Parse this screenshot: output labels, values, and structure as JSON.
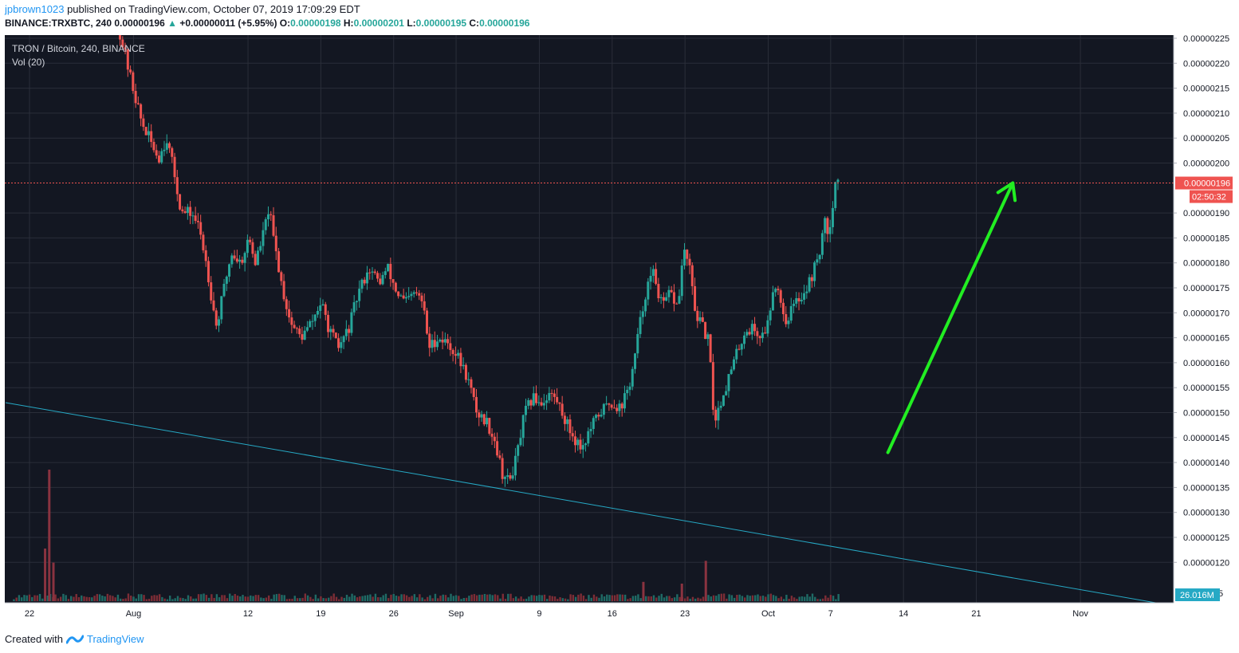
{
  "header": {
    "user": "jpbrown1023",
    "published_text": "published on TradingView.com, October 07, 2019 17:09:29 EDT",
    "symbol": "BINANCE:TRXBTC, 240",
    "last": "0.00000196",
    "change": "+0.00000011 (+5.95%)",
    "o_label": "O:",
    "o_value": "0.00000198",
    "h_label": "H:",
    "h_value": "0.00000201",
    "l_label": "L:",
    "l_value": "0.00000195",
    "c_label": "C:",
    "c_value": "0.00000196"
  },
  "legend": {
    "title": "TRON / Bitcoin, 240, BINANCE",
    "volume": "Vol (20)"
  },
  "footer": {
    "created_with": "Created with",
    "brand": "TradingView"
  },
  "colors": {
    "background": "#131722",
    "grid": "#2a2e39",
    "up": "#26a69a",
    "down": "#ef5350",
    "trendline": "#26a9c5",
    "arrow": "#22ee22",
    "price_line": "#ef5350",
    "axis_text": "#131722"
  },
  "chart_data": {
    "type": "candlestick",
    "symbol": "TRXBTC",
    "interval": "240",
    "exchange": "BINANCE",
    "price_axis": {
      "min": 1.1e-06,
      "max": 2.25e-06,
      "ticks": [
        "0.00000225",
        "0.00000220",
        "0.00000215",
        "0.00000210",
        "0.00000205",
        "0.00000200",
        "0.00000190",
        "0.00000185",
        "0.00000180",
        "0.00000175",
        "0.00000170",
        "0.00000165",
        "0.00000160",
        "0.00000155",
        "0.00000150",
        "0.00000145",
        "0.00000140",
        "0.00000135",
        "0.00000130",
        "0.00000125",
        "0.00000120"
      ],
      "current_price_label": "0.00000196",
      "countdown_label": "02:50:32",
      "volume_label": "26.016M",
      "volume_axis_tick": "5"
    },
    "time_axis": {
      "ticks": [
        {
          "label": "22",
          "day": 0
        },
        {
          "label": "Aug",
          "day": 10
        },
        {
          "label": "12",
          "day": 21
        },
        {
          "label": "19",
          "day": 28
        },
        {
          "label": "26",
          "day": 35
        },
        {
          "label": "Sep",
          "day": 41
        },
        {
          "label": "9",
          "day": 49
        },
        {
          "label": "16",
          "day": 56
        },
        {
          "label": "23",
          "day": 63
        },
        {
          "label": "Oct",
          "day": 71
        },
        {
          "label": "7",
          "day": 77
        },
        {
          "label": "14",
          "day": 84
        },
        {
          "label": "21",
          "day": 91
        },
        {
          "label": "Nov",
          "day": 101
        }
      ]
    },
    "price_path": [
      {
        "day": 8.7,
        "price": 2.26e-06
      },
      {
        "day": 9.6,
        "price": 2.18e-06
      },
      {
        "day": 10.8,
        "price": 2.08e-06
      },
      {
        "day": 12.4,
        "price": 2.01e-06
      },
      {
        "day": 13.2,
        "price": 2.05e-06
      },
      {
        "day": 13.9,
        "price": 1.98e-06
      },
      {
        "day": 14.6,
        "price": 1.9e-06
      },
      {
        "day": 15.6,
        "price": 1.9e-06
      },
      {
        "day": 16.3,
        "price": 1.87e-06
      },
      {
        "day": 17.0,
        "price": 1.8e-06
      },
      {
        "day": 17.5,
        "price": 1.73e-06
      },
      {
        "day": 18.0,
        "price": 1.67e-06
      },
      {
        "day": 18.6,
        "price": 1.74e-06
      },
      {
        "day": 19.4,
        "price": 1.82e-06
      },
      {
        "day": 20.3,
        "price": 1.8e-06
      },
      {
        "day": 21.1,
        "price": 1.85e-06
      },
      {
        "day": 21.7,
        "price": 1.8e-06
      },
      {
        "day": 22.5,
        "price": 1.86e-06
      },
      {
        "day": 23.0,
        "price": 1.91e-06
      },
      {
        "day": 23.6,
        "price": 1.83e-06
      },
      {
        "day": 24.4,
        "price": 1.74e-06
      },
      {
        "day": 25.1,
        "price": 1.68e-06
      },
      {
        "day": 26.1,
        "price": 1.65e-06
      },
      {
        "day": 27.1,
        "price": 1.68e-06
      },
      {
        "day": 28.0,
        "price": 1.72e-06
      },
      {
        "day": 28.9,
        "price": 1.66e-06
      },
      {
        "day": 29.7,
        "price": 1.63e-06
      },
      {
        "day": 30.7,
        "price": 1.67e-06
      },
      {
        "day": 31.6,
        "price": 1.74e-06
      },
      {
        "day": 32.6,
        "price": 1.79e-06
      },
      {
        "day": 33.6,
        "price": 1.76e-06
      },
      {
        "day": 34.4,
        "price": 1.79e-06
      },
      {
        "day": 35.3,
        "price": 1.74e-06
      },
      {
        "day": 36.1,
        "price": 1.72e-06
      },
      {
        "day": 37.1,
        "price": 1.74e-06
      },
      {
        "day": 37.8,
        "price": 1.72e-06
      },
      {
        "day": 38.4,
        "price": 1.63e-06
      },
      {
        "day": 39.2,
        "price": 1.65e-06
      },
      {
        "day": 40.2,
        "price": 1.64e-06
      },
      {
        "day": 41.2,
        "price": 1.61e-06
      },
      {
        "day": 42.1,
        "price": 1.57e-06
      },
      {
        "day": 43.0,
        "price": 1.5e-06
      },
      {
        "day": 44.0,
        "price": 1.48e-06
      },
      {
        "day": 44.8,
        "price": 1.44e-06
      },
      {
        "day": 45.4,
        "price": 1.38e-06
      },
      {
        "day": 46.1,
        "price": 1.36e-06
      },
      {
        "day": 46.8,
        "price": 1.41e-06
      },
      {
        "day": 47.6,
        "price": 1.5e-06
      },
      {
        "day": 48.4,
        "price": 1.53e-06
      },
      {
        "day": 49.3,
        "price": 1.52e-06
      },
      {
        "day": 50.0,
        "price": 1.54e-06
      },
      {
        "day": 50.8,
        "price": 1.52e-06
      },
      {
        "day": 51.6,
        "price": 1.48e-06
      },
      {
        "day": 52.3,
        "price": 1.45e-06
      },
      {
        "day": 53.1,
        "price": 1.43e-06
      },
      {
        "day": 54.0,
        "price": 1.47e-06
      },
      {
        "day": 54.8,
        "price": 1.5e-06
      },
      {
        "day": 55.8,
        "price": 1.52e-06
      },
      {
        "day": 56.8,
        "price": 1.51e-06
      },
      {
        "day": 57.6,
        "price": 1.55e-06
      },
      {
        "day": 58.1,
        "price": 1.6e-06
      },
      {
        "day": 58.6,
        "price": 1.67e-06
      },
      {
        "day": 59.3,
        "price": 1.75e-06
      },
      {
        "day": 60.0,
        "price": 1.78e-06
      },
      {
        "day": 60.8,
        "price": 1.71e-06
      },
      {
        "day": 61.6,
        "price": 1.74e-06
      },
      {
        "day": 62.3,
        "price": 1.71e-06
      },
      {
        "day": 62.9,
        "price": 1.83e-06
      },
      {
        "day": 63.5,
        "price": 1.78e-06
      },
      {
        "day": 64.0,
        "price": 1.7e-06
      },
      {
        "day": 64.7,
        "price": 1.67e-06
      },
      {
        "day": 65.3,
        "price": 1.64e-06
      },
      {
        "day": 65.8,
        "price": 1.48e-06
      },
      {
        "day": 66.4,
        "price": 1.52e-06
      },
      {
        "day": 67.2,
        "price": 1.57e-06
      },
      {
        "day": 68.0,
        "price": 1.62e-06
      },
      {
        "day": 68.7,
        "price": 1.66e-06
      },
      {
        "day": 69.5,
        "price": 1.67e-06
      },
      {
        "day": 70.3,
        "price": 1.65e-06
      },
      {
        "day": 71.0,
        "price": 1.68e-06
      },
      {
        "day": 71.5,
        "price": 1.76e-06
      },
      {
        "day": 72.1,
        "price": 1.74e-06
      },
      {
        "day": 72.6,
        "price": 1.68e-06
      },
      {
        "day": 73.3,
        "price": 1.71e-06
      },
      {
        "day": 74.0,
        "price": 1.73e-06
      },
      {
        "day": 74.7,
        "price": 1.75e-06
      },
      {
        "day": 75.3,
        "price": 1.78e-06
      },
      {
        "day": 75.9,
        "price": 1.82e-06
      },
      {
        "day": 76.4,
        "price": 1.88e-06
      },
      {
        "day": 76.8,
        "price": 1.86e-06
      },
      {
        "day": 77.2,
        "price": 1.92e-06
      },
      {
        "day": 77.5,
        "price": 1.97e-06
      },
      {
        "day": 77.8,
        "price": 1.96e-06
      }
    ],
    "volume_spikes": [
      {
        "day": 1.5,
        "value": 3.0
      },
      {
        "day": 1.9,
        "value": 7.5
      },
      {
        "day": 2.3,
        "value": 2.2
      },
      {
        "day": 65.0,
        "value": 2.3
      },
      {
        "day": 59.0,
        "value": 1.1
      },
      {
        "day": 62.7,
        "value": 1.0
      }
    ],
    "trendline": {
      "start": {
        "day": -2.3,
        "price": 1.52e-06
      },
      "end": {
        "day": 111.0,
        "price": 1.109e-06
      }
    },
    "arrow": {
      "start": {
        "day": 82.5,
        "price": 1.42e-06
      },
      "end": {
        "day": 94.5,
        "price": 1.96e-06
      }
    },
    "current_price": 1.96e-06
  }
}
